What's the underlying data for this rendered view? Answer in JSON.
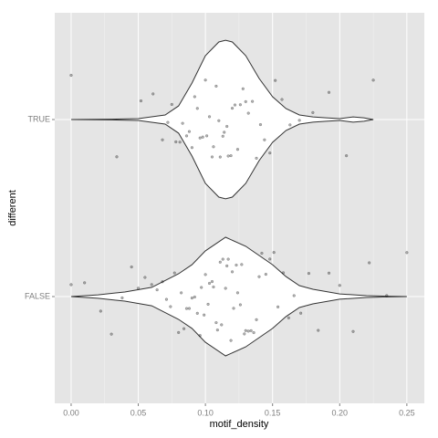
{
  "chart_data": {
    "type": "violin",
    "xlabel": "motif_density",
    "ylabel": "different",
    "categories": [
      "TRUE",
      "FALSE"
    ],
    "xlim": [
      -0.0122,
      0.263
    ],
    "xticks": [
      {
        "value": 0,
        "label": "0.00"
      },
      {
        "value": 0.05,
        "label": "0.05"
      },
      {
        "value": 0.1,
        "label": "0.10"
      },
      {
        "value": 0.15,
        "label": "0.15"
      },
      {
        "value": 0.2,
        "label": "0.20"
      },
      {
        "value": 0.25,
        "label": "0.25"
      }
    ],
    "grid": true,
    "violins": [
      {
        "x": [
          0,
          0.03,
          0.05,
          0.07,
          0.08,
          0.09,
          0.1,
          0.11,
          0.115,
          0.12,
          0.13,
          0.14,
          0.15,
          0.16,
          0.17,
          0.18,
          0.19,
          0.2,
          0.21,
          0.218,
          0.225
        ],
        "half_width": [
          0,
          0.002,
          0.005,
          0.026,
          0.077,
          0.206,
          0.361,
          0.438,
          0.448,
          0.438,
          0.361,
          0.232,
          0.129,
          0.062,
          0.026,
          0.015,
          0.01,
          0.005,
          0.015,
          0.01,
          0
        ]
      },
      {
        "x": [
          0,
          0.02,
          0.04,
          0.06,
          0.08,
          0.09,
          0.1,
          0.115,
          0.13,
          0.14,
          0.15,
          0.16,
          0.17,
          0.18,
          0.2,
          0.22,
          0.235,
          0.25
        ],
        "half_width": [
          0,
          0.01,
          0.026,
          0.052,
          0.129,
          0.18,
          0.258,
          0.335,
          0.284,
          0.232,
          0.18,
          0.113,
          0.062,
          0.041,
          0.015,
          0.005,
          0.002,
          0
        ]
      }
    ],
    "points": [
      [
        0.0,
        0.034,
        0.052,
        0.061,
        0.068,
        0.072,
        0.075,
        0.078,
        0.081,
        0.083,
        0.086,
        0.088,
        0.09,
        0.092,
        0.094,
        0.096,
        0.098,
        0.1,
        0.101,
        0.103,
        0.105,
        0.106,
        0.108,
        0.11,
        0.111,
        0.113,
        0.114,
        0.116,
        0.117,
        0.119,
        0.12,
        0.122,
        0.124,
        0.126,
        0.128,
        0.13,
        0.132,
        0.135,
        0.138,
        0.141,
        0.144,
        0.148,
        0.152,
        0.157,
        0.163,
        0.17,
        0.18,
        0.192,
        0.205,
        0.225
      ],
      [
        0.0,
        0.01,
        0.022,
        0.03,
        0.038,
        0.045,
        0.05,
        0.055,
        0.06,
        0.064,
        0.068,
        0.071,
        0.074,
        0.077,
        0.08,
        0.082,
        0.084,
        0.086,
        0.088,
        0.09,
        0.092,
        0.094,
        0.096,
        0.097,
        0.099,
        0.1,
        0.102,
        0.103,
        0.105,
        0.106,
        0.108,
        0.109,
        0.111,
        0.112,
        0.113,
        0.115,
        0.116,
        0.117,
        0.119,
        0.12,
        0.121,
        0.123,
        0.124,
        0.126,
        0.127,
        0.129,
        0.13,
        0.132,
        0.134,
        0.136,
        0.138,
        0.14,
        0.142,
        0.145,
        0.148,
        0.151,
        0.154,
        0.158,
        0.162,
        0.166,
        0.171,
        0.177,
        0.184,
        0.192,
        0.2,
        0.21,
        0.222,
        0.235,
        0.25
      ]
    ]
  }
}
